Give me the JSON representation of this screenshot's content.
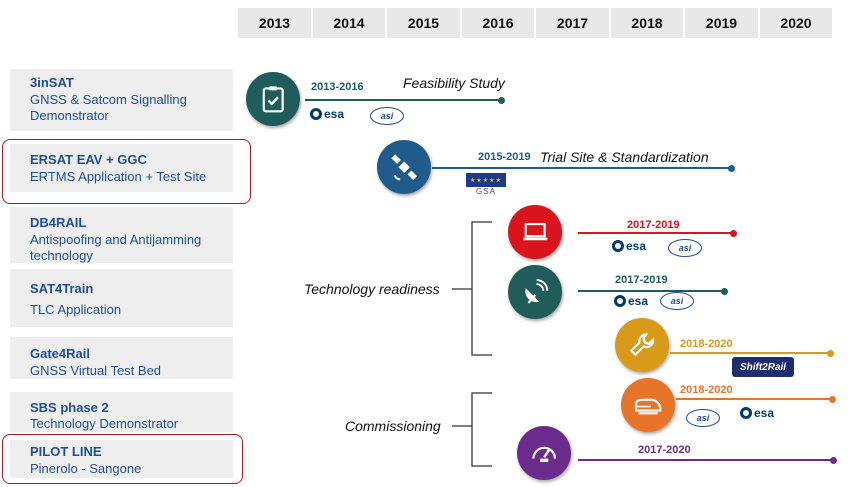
{
  "years": [
    "2013",
    "2014",
    "2015",
    "2016",
    "2017",
    "2018",
    "2019",
    "2020"
  ],
  "projects": [
    {
      "title": "3inSAT",
      "subtitle": "GNSS & Satcom Signalling Demonstrator"
    },
    {
      "title": "ERSAT EAV + GGC",
      "subtitle": "ERTMS Application + Test Site"
    },
    {
      "title": "DB4RAIL",
      "subtitle": "Antispoofing and  Antijamming technology"
    },
    {
      "title": "SAT4Train",
      "subtitle": "TLC  Application"
    },
    {
      "title": "Gate4Rail",
      "subtitle": "GNSS Virtual Test Bed"
    },
    {
      "title": "SBS phase 2",
      "subtitle": "Technology Demonstrator"
    },
    {
      "title": "PILOT LINE",
      "subtitle": "Pinerolo - Sangone"
    }
  ],
  "timeline": [
    {
      "period": "2013-2016",
      "label": "Feasibility Study",
      "color": "#1f5c5a",
      "icon": "clipboard-check-icon",
      "logos": [
        "esa",
        "asi"
      ]
    },
    {
      "period": "2015-2019",
      "label": "Trial Site & Standardization",
      "color": "#1f5c8c",
      "icon": "satellite-icon",
      "logos": [
        "gsa"
      ]
    },
    {
      "period": "2017-2019",
      "label": "",
      "color": "#d9141c",
      "icon": "laptop-icon",
      "logos": [
        "esa",
        "asi"
      ]
    },
    {
      "period": "2017-2019",
      "label": "",
      "color": "#1f5c5a",
      "icon": "satellite-dish-icon",
      "logos": [
        "esa",
        "asi"
      ]
    },
    {
      "period": "2018-2020",
      "label": "",
      "color": "#d99a1a",
      "icon": "wrench-icon",
      "logos": [
        "shift2rail"
      ]
    },
    {
      "period": "2018-2020",
      "label": "",
      "color": "#e8742a",
      "icon": "train-icon",
      "logos": [
        "asi",
        "esa"
      ]
    },
    {
      "period": "2017-2020",
      "label": "",
      "color": "#6b2b8c",
      "icon": "speedometer-icon",
      "logos": []
    }
  ],
  "phases": {
    "technology": "Technology readiness",
    "commissioning": "Commissioning"
  },
  "logos": {
    "esa": "esa",
    "asi": "asi",
    "gsa": "GSA",
    "shift2rail": "Shift2Rail"
  }
}
